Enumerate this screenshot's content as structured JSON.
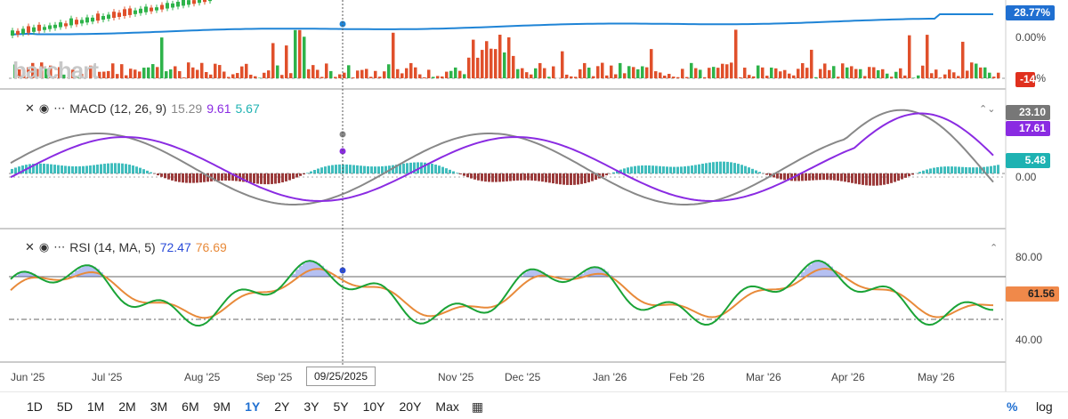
{
  "logo": {
    "text": "barchart"
  },
  "top_panel": {
    "badge_pct": "28.77%",
    "badge_low": "-14",
    "zero_label": "0.00%",
    "zero_label2": "0.00%",
    "colors": {
      "line": "#1f84d6",
      "up": "#2eb34a",
      "down": "#e0502b",
      "badge_blue": "#1f6fd1",
      "badge_red": "#e0301e"
    }
  },
  "macd": {
    "label": "MACD (12, 26, 9)",
    "v1": "15.29",
    "v2": "9.61",
    "v3": "5.67",
    "badge_a": "23.10",
    "badge_b": "17.61",
    "badge_c": "5.48",
    "zero": "0.00",
    "colors": {
      "macd": "#888888",
      "signal": "#8a2be2",
      "hist_pos": "#1eb2b2",
      "hist_neg": "#8b1a1a"
    }
  },
  "rsi": {
    "label": "RSI (14, MA, 5)",
    "v1": "72.47",
    "v2": "76.69",
    "badge": "61.56",
    "tick_hi": "80.00",
    "tick_lo": "40.00",
    "colors": {
      "rsi": "#1aa336",
      "ma": "#e88a3a",
      "fill": "#2a4bd8"
    }
  },
  "x_axis": {
    "labels": [
      "Jun '25",
      "Jul '25",
      "Aug '25",
      "Sep '25",
      "Nov '25",
      "Dec '25",
      "Jan '26",
      "Feb '26",
      "Mar '26",
      "Apr '26",
      "May '26"
    ]
  },
  "crosshair_date": "09/25/2025",
  "ranges": [
    {
      "label": "1D",
      "active": false
    },
    {
      "label": "5D",
      "active": false
    },
    {
      "label": "1M",
      "active": false
    },
    {
      "label": "2M",
      "active": false
    },
    {
      "label": "3M",
      "active": false
    },
    {
      "label": "6M",
      "active": false
    },
    {
      "label": "9M",
      "active": false
    },
    {
      "label": "1Y",
      "active": true
    },
    {
      "label": "2Y",
      "active": false
    },
    {
      "label": "3Y",
      "active": false
    },
    {
      "label": "5Y",
      "active": false
    },
    {
      "label": "10Y",
      "active": false
    },
    {
      "label": "20Y",
      "active": false
    },
    {
      "label": "Max",
      "active": false
    }
  ],
  "toggles": {
    "pct": "%",
    "log": "log"
  },
  "icons": {
    "close": "close-icon",
    "eye": "eye-icon",
    "more": "more-icon",
    "calendar": "calendar-icon",
    "chevron": "chevron-up-icon"
  }
}
